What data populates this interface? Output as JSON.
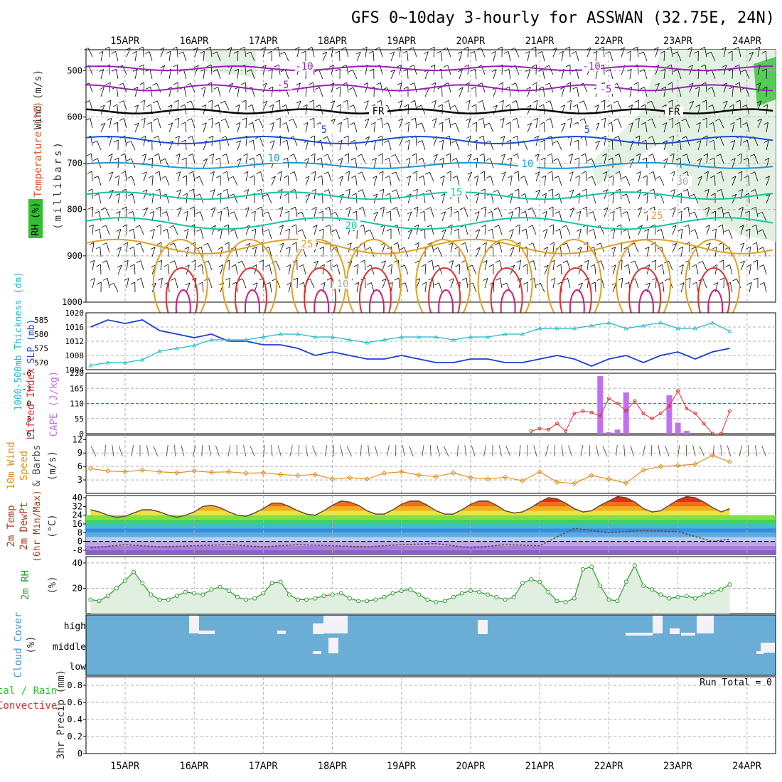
{
  "title": "GFS 0~10day 3-hourly for ASSWAN (32.75E, 24N)",
  "dates": [
    "15APR",
    "16APR",
    "17APR",
    "18APR",
    "19APR",
    "20APR",
    "21APR",
    "22APR",
    "23APR",
    "24APR"
  ],
  "colors": {
    "grid": "#b0b0b0",
    "purple": "#9b22b8",
    "blue_dark": "#1c4fd6",
    "blue_mid": "#1c9ad6",
    "teal": "#17c4a0",
    "orange": "#e0a020",
    "red": "#e03030",
    "magenta": "#d01880",
    "rh_green": "#2f9a2f",
    "cloud_blue": "#6aaed6",
    "cape_purple": "#c070f0",
    "slp_blue": "#1c3fd0",
    "thick_cyan": "#20b8c8",
    "wind_orange": "#e09020"
  },
  "panels": {
    "upper_air": {
      "ylabel_wind": "Wind (m/s)",
      "ylabel_temp": "Temperature (°C)",
      "ylabel_rh": "RH (%)",
      "ylabel_units": "(millibars)",
      "yticks": [
        "500",
        "600",
        "700",
        "800",
        "900",
        "1000"
      ],
      "contour_labels": [
        "-10",
        "-10",
        "-5",
        "-5",
        "FR",
        "FR",
        "5",
        "5",
        "10",
        "10",
        "15",
        "20",
        "25",
        "25",
        "10",
        "30"
      ]
    },
    "slp": {
      "ylabel_left": "1000-500mb Thickness (dm)",
      "ylabel_right": "SLP (mb)",
      "left_ticks": [
        "585",
        "580",
        "575",
        "570"
      ],
      "right_ticks": [
        "1020",
        "1016",
        "1012",
        "1008",
        "1004"
      ]
    },
    "cape": {
      "ylabel_left": "Lifted Index",
      "ylabel_right": "CAPE (J/kg)",
      "left_ticks": [
        "-6",
        "-3",
        "0",
        "3",
        "6"
      ],
      "right_ticks": [
        "220",
        "165",
        "110",
        "55",
        "0"
      ]
    },
    "wind10": {
      "ylabel_a": "10m Wind",
      "ylabel_b": "Speed",
      "ylabel_c": "& Barbs",
      "ylabel_units": "(m/s)",
      "yticks": [
        "12",
        "9",
        "6",
        "3"
      ]
    },
    "temp2m": {
      "ylabel_a": "2m Temp",
      "ylabel_b": "2m DewPt",
      "ylabel_c": "(6hr Min/Max)",
      "ylabel_units": "(°C)",
      "yticks": [
        "40",
        "32",
        "24",
        "16",
        "8",
        "0",
        "-8"
      ]
    },
    "rh2m": {
      "ylabel": "2m RH",
      "ylabel_units": "(%)",
      "yticks": [
        "40",
        "20"
      ]
    },
    "cloud": {
      "ylabel": "Cloud Cover",
      "ylabel_units": "(%)",
      "levels": [
        "high",
        "middle",
        "low"
      ]
    },
    "precip": {
      "ylabel_a": "tal / Rain",
      "ylabel_b": "Convective",
      "ylabel_units": "3hr Precip (mm)",
      "yticks": [
        "0.8",
        "0.6",
        "0.4",
        "0.2",
        "0"
      ],
      "run_total": "Run Total = 0"
    }
  },
  "chart_data": [
    {
      "type": "line",
      "name": "SLP",
      "ylabel": "SLP (mb)",
      "ylim": [
        1004,
        1020
      ],
      "x_days": [
        0,
        0.25,
        0.5,
        0.75,
        1,
        1.25,
        1.5,
        1.75,
        2,
        2.25,
        2.5,
        2.75,
        3,
        3.25,
        3.5,
        3.75,
        4,
        4.25,
        4.5,
        4.75,
        5,
        5.25,
        5.5,
        5.75,
        6,
        6.25,
        6.5,
        6.75,
        7,
        7.25,
        7.5,
        7.75,
        8,
        8.25,
        8.5,
        8.75,
        9,
        9.25
      ],
      "values": [
        1016,
        1018,
        1017,
        1018,
        1015,
        1014,
        1013,
        1014,
        1012,
        1012,
        1011,
        1011,
        1010,
        1008,
        1009,
        1008,
        1007,
        1007,
        1008,
        1007,
        1006,
        1006,
        1007,
        1007,
        1006,
        1006,
        1007,
        1008,
        1007,
        1005,
        1007,
        1008,
        1006,
        1008,
        1009,
        1007,
        1009,
        1010
      ]
    },
    {
      "type": "line",
      "name": "1000-500mb Thickness",
      "ylabel": "1000-500mb Thickness (dm)",
      "ylim": [
        567.5,
        587.5
      ],
      "x_days": [
        0,
        0.25,
        0.5,
        0.75,
        1,
        1.25,
        1.5,
        1.75,
        2,
        2.25,
        2.5,
        2.75,
        3,
        3.25,
        3.5,
        3.75,
        4,
        4.25,
        4.5,
        4.75,
        5,
        5.25,
        5.5,
        5.75,
        6,
        6.25,
        6.5,
        6.75,
        7,
        7.25,
        7.5,
        7.75,
        8,
        8.25,
        8.5,
        8.75,
        9,
        9.25
      ],
      "values": [
        569,
        570,
        570,
        571,
        574,
        575,
        576,
        578,
        578,
        578,
        579,
        580,
        580,
        579,
        579,
        578,
        577,
        578,
        579,
        579,
        579,
        578,
        579,
        579,
        580,
        580,
        582,
        582,
        582,
        583,
        584,
        582,
        583,
        584,
        582,
        582,
        584,
        581
      ]
    },
    {
      "type": "bar",
      "name": "CAPE",
      "ylabel": "CAPE (J/kg)",
      "ylim": [
        0,
        220
      ],
      "x_days": [
        7.375,
        7.5,
        7.625,
        7.75,
        8.375,
        8.5,
        8.625
      ],
      "values": [
        210,
        5,
        15,
        150,
        140,
        40,
        10
      ]
    },
    {
      "type": "line",
      "name": "Lifted Index",
      "ylabel": "Lifted Index",
      "ylim": [
        -6,
        6
      ],
      "x_days": [
        6.375,
        6.5,
        6.625,
        6.75,
        6.875,
        7,
        7.125,
        7.25,
        7.375,
        7.5,
        7.625,
        7.75,
        7.875,
        8,
        8.125,
        8.25,
        8.375,
        8.5,
        8.625,
        8.75,
        8.875,
        9,
        9.125,
        9.25
      ],
      "values": [
        5.5,
        5,
        5.2,
        4,
        5.5,
        2,
        1.5,
        1.8,
        2.5,
        -1,
        0,
        1.5,
        -0.5,
        2,
        3,
        2,
        0.5,
        -2.5,
        1,
        2,
        4,
        6,
        6,
        1.5
      ]
    },
    {
      "type": "line",
      "name": "10m Wind Speed",
      "ylabel": "(m/s)",
      "ylim": [
        0,
        12
      ],
      "x_days": [
        0,
        0.25,
        0.5,
        0.75,
        1,
        1.25,
        1.5,
        1.75,
        2,
        2.25,
        2.5,
        2.75,
        3,
        3.25,
        3.5,
        3.75,
        4,
        4.25,
        4.5,
        4.75,
        5,
        5.25,
        5.5,
        5.75,
        6,
        6.25,
        6.5,
        6.75,
        7,
        7.25,
        7.5,
        7.75,
        8,
        8.25,
        8.5,
        8.75,
        9,
        9.25
      ],
      "values": [
        5.5,
        5,
        4.8,
        5.2,
        4.8,
        4.6,
        5.0,
        4.7,
        4.8,
        4.5,
        4.6,
        4.2,
        4.0,
        4.2,
        3.2,
        3.5,
        3.2,
        4.5,
        4.8,
        4.1,
        3.7,
        4.6,
        3.5,
        3.2,
        3.6,
        2.8,
        4.8,
        2.5,
        2.2,
        4.0,
        3.2,
        2.3,
        5.2,
        6.0,
        6.2,
        6.5,
        8.5,
        7.0
      ]
    },
    {
      "type": "line",
      "name": "2m Temp",
      "ylabel": "(°C)",
      "ylim": [
        -12,
        42
      ],
      "x_days": [
        0,
        0.125,
        0.25,
        0.375,
        0.5,
        0.625,
        0.75,
        0.875,
        1,
        1.125,
        1.25,
        1.375,
        1.5,
        1.625,
        1.75,
        1.875,
        2,
        2.125,
        2.25,
        2.375,
        2.5,
        2.625,
        2.75,
        2.875,
        3,
        3.125,
        3.25,
        3.375,
        3.5,
        3.625,
        3.75,
        3.875,
        4,
        4.125,
        4.25,
        4.375,
        4.5,
        4.625,
        4.75,
        4.875,
        5,
        5.125,
        5.25,
        5.375,
        5.5,
        5.625,
        5.75,
        5.875,
        6,
        6.125,
        6.25,
        6.375,
        6.5,
        6.625,
        6.75,
        6.875,
        7,
        7.125,
        7.25,
        7.375,
        7.5,
        7.625,
        7.75,
        7.875,
        8,
        8.125,
        8.25,
        8.375,
        8.5,
        8.625,
        8.75,
        8.875,
        9,
        9.125,
        9.25
      ],
      "values": [
        29,
        27,
        24,
        22,
        23,
        26,
        29,
        29,
        27,
        24,
        22,
        24,
        27,
        32,
        33,
        31,
        27,
        24,
        23,
        26,
        30,
        35,
        35,
        32,
        28,
        25,
        24,
        28,
        33,
        37,
        36,
        33,
        28,
        25,
        25,
        29,
        34,
        37,
        37,
        33,
        28,
        25,
        25,
        29,
        34,
        37,
        37,
        33,
        28,
        26,
        27,
        31,
        36,
        40,
        39,
        35,
        30,
        27,
        28,
        33,
        37,
        41,
        40,
        36,
        30,
        27,
        28,
        33,
        38,
        41,
        40,
        36,
        31,
        27,
        30
      ]
    },
    {
      "type": "line",
      "name": "2m DewPt",
      "ylabel": "(°C)",
      "ylim": [
        -12,
        42
      ],
      "x_days": [
        0,
        0.5,
        1,
        1.5,
        2,
        2.5,
        3,
        3.5,
        4,
        4.5,
        5,
        5.5,
        6,
        6.5,
        7,
        7.5,
        8,
        8.5,
        9,
        9.25
      ],
      "values": [
        -6,
        -3,
        -5,
        -4,
        -3,
        -5,
        -3,
        -4,
        -5,
        -3,
        -2,
        -6,
        -3,
        -4,
        12,
        8,
        10,
        9,
        0,
        2
      ]
    },
    {
      "type": "area",
      "name": "2m RH",
      "ylabel": "(%)",
      "ylim": [
        0,
        45
      ],
      "x_days": [
        0,
        0.125,
        0.25,
        0.375,
        0.5,
        0.625,
        0.75,
        0.875,
        1,
        1.125,
        1.25,
        1.375,
        1.5,
        1.625,
        1.75,
        1.875,
        2,
        2.125,
        2.25,
        2.375,
        2.5,
        2.625,
        2.75,
        2.875,
        3,
        3.125,
        3.25,
        3.375,
        3.5,
        3.625,
        3.75,
        3.875,
        4,
        4.125,
        4.25,
        4.375,
        4.5,
        4.625,
        4.75,
        4.875,
        5,
        5.125,
        5.25,
        5.375,
        5.5,
        5.625,
        5.75,
        5.875,
        6,
        6.125,
        6.25,
        6.375,
        6.5,
        6.625,
        6.75,
        6.875,
        7,
        7.125,
        7.25,
        7.375,
        7.5,
        7.625,
        7.75,
        7.875,
        8,
        8.125,
        8.25,
        8.375,
        8.5,
        8.625,
        8.75,
        8.875,
        9,
        9.125,
        9.25
      ],
      "values": [
        11,
        10,
        14,
        20,
        26,
        33,
        24,
        15,
        11,
        11,
        14,
        17,
        16,
        15,
        19,
        21,
        18,
        13,
        11,
        12,
        16,
        24,
        25,
        15,
        11,
        11,
        12,
        14,
        15,
        16,
        12,
        10,
        10,
        11,
        13,
        16,
        18,
        19,
        15,
        11,
        9,
        10,
        13,
        16,
        18,
        17,
        15,
        13,
        11,
        13,
        24,
        27,
        25,
        17,
        10,
        9,
        12,
        35,
        37,
        22,
        11,
        10,
        25,
        38,
        22,
        19,
        15,
        12,
        13,
        14,
        12,
        15,
        17,
        19,
        23
      ]
    },
    {
      "type": "bar",
      "name": "3hr Precip",
      "ylabel": "3hr Precip (mm)",
      "ylim": [
        0,
        0.9
      ],
      "x_days": [
        0
      ],
      "values": [
        0
      ]
    }
  ]
}
